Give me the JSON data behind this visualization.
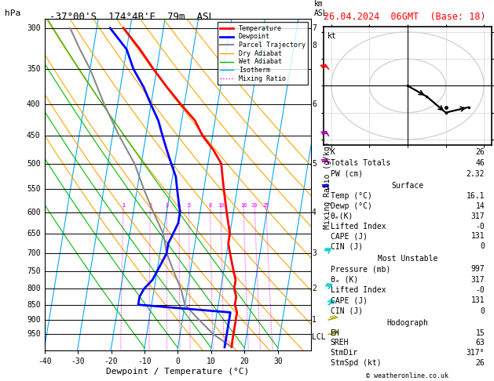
{
  "title_left": "-37°00'S  174°4B'E  79m  ASL",
  "title_top": "26.04.2024  06GMT  (Base: 18)",
  "xlabel": "Dewpoint / Temperature (°C)",
  "temp_color": "#ff0000",
  "dewp_color": "#0000ff",
  "parcel_color": "#888888",
  "dry_adiabat_color": "#ffa500",
  "wet_adiabat_color": "#00bb00",
  "isotherm_color": "#00aaff",
  "mixing_ratio_color": "#ff00ff",
  "legend_items": [
    {
      "label": "Temperature",
      "color": "#ff0000",
      "lw": 2.0,
      "ls": "-"
    },
    {
      "label": "Dewpoint",
      "color": "#0000ff",
      "lw": 2.0,
      "ls": "-"
    },
    {
      "label": "Parcel Trajectory",
      "color": "#888888",
      "lw": 1.5,
      "ls": "-"
    },
    {
      "label": "Dry Adiabat",
      "color": "#ffa500",
      "lw": 1.0,
      "ls": "-"
    },
    {
      "label": "Wet Adiabat",
      "color": "#00bb00",
      "lw": 1.0,
      "ls": "-"
    },
    {
      "label": "Isotherm",
      "color": "#00aaff",
      "lw": 1.0,
      "ls": "-"
    },
    {
      "label": "Mixing Ratio",
      "color": "#ff00ff",
      "lw": 1.0,
      "ls": ":"
    }
  ],
  "pressure_levels": [
    300,
    350,
    400,
    450,
    500,
    550,
    600,
    650,
    700,
    750,
    800,
    850,
    900,
    950
  ],
  "p_min": 290,
  "p_max": 1010,
  "skew_factor": 30.0,
  "P_ref": 1000.0,
  "temp_profile": {
    "pressure": [
      300,
      325,
      350,
      375,
      400,
      425,
      450,
      475,
      500,
      525,
      550,
      575,
      600,
      625,
      650,
      675,
      700,
      725,
      750,
      775,
      800,
      825,
      850,
      875,
      900,
      925,
      950,
      975,
      997
    ],
    "temp": [
      -32,
      -26,
      -21,
      -16,
      -11,
      -6,
      -3,
      1,
      4,
      5,
      6,
      7,
      8,
      9,
      10,
      10,
      11,
      12,
      13,
      14,
      14,
      15,
      15,
      16,
      16,
      16,
      16,
      16,
      16.1
    ]
  },
  "dewp_profile": {
    "pressure": [
      300,
      325,
      350,
      375,
      400,
      425,
      450,
      475,
      500,
      525,
      550,
      575,
      600,
      625,
      650,
      675,
      700,
      725,
      750,
      775,
      800,
      825,
      850,
      875,
      900,
      925,
      950,
      975,
      997
    ],
    "dewp": [
      -36,
      -30,
      -27,
      -23,
      -20,
      -17,
      -15,
      -13,
      -11,
      -9,
      -8,
      -7,
      -6,
      -6,
      -7,
      -8,
      -8,
      -9,
      -10,
      -11,
      -13,
      -14,
      -14,
      14,
      14,
      14,
      14,
      14,
      14
    ]
  },
  "parcel_profile": {
    "pressure": [
      997,
      950,
      900,
      850,
      800,
      750,
      700,
      650,
      600,
      550,
      500,
      450,
      400,
      350,
      325,
      300
    ],
    "temp": [
      16.1,
      10,
      5,
      0,
      -2,
      -5,
      -8,
      -10,
      -14,
      -18,
      -22,
      -28,
      -34,
      -40,
      -44,
      -48
    ]
  },
  "isotherms": [
    -40,
    -30,
    -20,
    -10,
    0,
    10,
    20,
    30
  ],
  "dry_adiabats_thetas": [
    280,
    290,
    300,
    310,
    320,
    330,
    340,
    350,
    360,
    370
  ],
  "wet_adiabats_T0": [
    -10,
    0,
    10,
    20,
    30
  ],
  "mixing_ratio_vals": [
    1,
    2,
    3,
    4,
    5,
    8,
    10,
    16,
    20,
    25
  ],
  "km_pressures": [
    900,
    800,
    700,
    600,
    500,
    400,
    300
  ],
  "km_values": [
    1,
    2,
    3,
    4,
    5,
    6,
    7
  ],
  "km_lcl_p": 960,
  "km_8_p": 320,
  "stats": {
    "K": "26",
    "Totals Totals": "46",
    "PW (cm)": "2.32",
    "Surface_Temp": "16.1",
    "Surface_Dewp": "14",
    "Surface_theta_e": "317",
    "Surface_LI": "-0",
    "Surface_CAPE": "131",
    "Surface_CIN": "0",
    "MU_Pressure": "997",
    "MU_theta_e": "317",
    "MU_LI": "-0",
    "MU_CAPE": "131",
    "MU_CIN": "0",
    "EH": "15",
    "SREH": "63",
    "StmDir": "317°",
    "StmSpd": "26"
  },
  "hodo_circles": [
    10,
    20
  ],
  "hodo_u": [
    0,
    5,
    10,
    16
  ],
  "hodo_v": [
    0,
    -4,
    -10,
    -8
  ]
}
